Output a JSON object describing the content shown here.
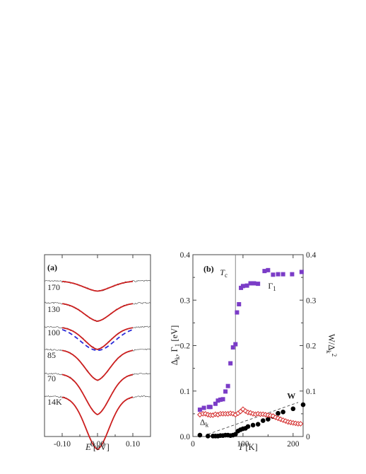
{
  "chart_data": [
    {
      "panel": "(a)",
      "type": "line",
      "xlabel": {
        "main": "E",
        "unit": " [eV]"
      },
      "xlim": [
        -0.15,
        0.15
      ],
      "x_ticks": [
        "-0.10",
        "0.00",
        "0.10"
      ],
      "curve_labels": [
        "170",
        "130",
        "100",
        "85",
        "70",
        "14K"
      ],
      "series_depths": [
        0.25,
        0.45,
        0.55,
        0.75,
        1.0,
        1.3
      ],
      "series_colors": {
        "data": "#444444",
        "fit": "#cc1f1f",
        "alt_fit": "#2a2ad8"
      }
    },
    {
      "panel": "(b)",
      "type": "scatter",
      "xlabel": {
        "main": "T",
        "unit": " [K]"
      },
      "ylabel_left": {
        "a": "Δ",
        "a_sub": "k",
        "sep": ", Γ",
        "b_sub": "1",
        "unit": " [eV]"
      },
      "ylabel_right": {
        "a": "W/Δ",
        "a_sub": "k",
        "b_sup": "2"
      },
      "xlim": [
        0,
        220
      ],
      "ylim": [
        0,
        0.4
      ],
      "x_ticks": [
        "0",
        "100",
        "200"
      ],
      "y_ticks_left": [
        "0.0",
        "0.1",
        "0.2",
        "0.3",
        "0.4"
      ],
      "y_ticks_right": [
        "0",
        "0.1",
        "0.2",
        "0.3",
        "0.4"
      ],
      "tc_line": 85,
      "tc_label": {
        "main": "T",
        "sub": "c"
      },
      "annotations": [
        {
          "main": "Γ",
          "sub": "1",
          "at": [
            150,
            0.325
          ]
        },
        {
          "main": "W",
          "sub": "",
          "at": [
            188,
            0.083
          ]
        },
        {
          "main": "Δ",
          "sub": "k",
          "at": [
            14,
            0.026
          ]
        }
      ],
      "dashed_line": {
        "x": [
          30,
          210
        ],
        "y": [
          0.005,
          0.075
        ]
      },
      "series": [
        {
          "name": "Γ1",
          "marker": "square",
          "color": "#7b3cc7",
          "x": [
            14,
            22,
            32,
            35,
            45,
            50,
            55,
            60,
            65,
            70,
            75,
            80,
            85,
            88,
            92,
            96,
            100,
            108,
            115,
            122,
            130,
            143,
            150,
            160,
            170,
            180,
            198,
            217
          ],
          "y": [
            0.059,
            0.063,
            0.065,
            0.065,
            0.072,
            0.079,
            0.081,
            0.082,
            0.099,
            0.111,
            0.161,
            0.196,
            0.203,
            0.273,
            0.291,
            0.327,
            0.331,
            0.332,
            0.337,
            0.337,
            0.336,
            0.364,
            0.366,
            0.356,
            0.357,
            0.357,
            0.357,
            0.362
          ]
        },
        {
          "name": "W",
          "marker": "circle",
          "color": "#000000",
          "x": [
            14,
            30,
            40,
            45,
            50,
            55,
            60,
            65,
            70,
            75,
            80,
            85,
            90,
            95,
            100,
            105,
            110,
            120,
            130,
            140,
            150,
            160,
            170,
            180,
            200,
            220
          ],
          "y": [
            0.003,
            0.001,
            0.001,
            0.001,
            0.001,
            0.002,
            0.002,
            0.003,
            0.003,
            0.002,
            0.003,
            0.005,
            0.012,
            0.015,
            0.017,
            0.018,
            0.022,
            0.025,
            0.027,
            0.035,
            0.038,
            0.044,
            0.051,
            0.054,
            0.061,
            0.07
          ]
        },
        {
          "name": "Δk",
          "marker": "diamond-open",
          "color": "#d42a2a",
          "x": [
            14,
            20,
            25,
            30,
            35,
            40,
            45,
            50,
            55,
            60,
            65,
            70,
            75,
            80,
            85,
            90,
            95,
            100,
            105,
            110,
            115,
            120,
            125,
            130,
            135,
            140,
            145,
            150,
            155,
            160,
            165,
            170,
            175,
            180,
            185,
            190,
            195,
            200,
            205,
            210,
            215
          ],
          "y": [
            0.048,
            0.05,
            0.05,
            0.048,
            0.047,
            0.047,
            0.049,
            0.048,
            0.05,
            0.05,
            0.05,
            0.05,
            0.051,
            0.05,
            0.048,
            0.051,
            0.055,
            0.06,
            0.056,
            0.053,
            0.052,
            0.05,
            0.049,
            0.05,
            0.049,
            0.049,
            0.048,
            0.047,
            0.046,
            0.045,
            0.042,
            0.04,
            0.038,
            0.036,
            0.034,
            0.032,
            0.031,
            0.03,
            0.029,
            0.028,
            0.028
          ]
        }
      ]
    }
  ]
}
